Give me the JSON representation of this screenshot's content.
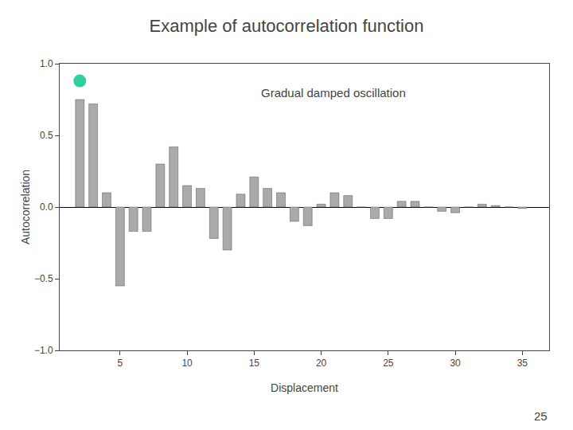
{
  "chart_data": {
    "type": "bar",
    "title": "Example of autocorrelation function",
    "subtitle": "Gradual damped oscillation",
    "xlabel": "Displacement",
    "ylabel": "Autocorrelation",
    "annotations": [
      "25"
    ],
    "xlim": [
      0.5,
      37
    ],
    "ylim": [
      -1.0,
      1.0
    ],
    "xticks": [
      5,
      10,
      15,
      20,
      25,
      30,
      35
    ],
    "yticks": [
      {
        "value": -1.0,
        "label": "−1.0"
      },
      {
        "value": -0.5,
        "label": "−0.5"
      },
      {
        "value": 0.0,
        "label": "0.0"
      },
      0.5,
      {
        "value": 1.0,
        "label": "1.0"
      }
    ],
    "grid": false,
    "series": [
      {
        "type": "bar",
        "color": "#aaaaaa",
        "x": [
          2,
          3,
          4,
          5,
          6,
          7,
          8,
          9,
          10,
          11,
          12,
          13,
          14,
          15,
          16,
          17,
          18,
          19,
          20,
          21,
          22,
          23,
          24,
          25,
          26,
          27,
          28,
          29,
          30,
          31,
          32,
          33,
          34,
          35
        ],
        "values": [
          0.75,
          0.72,
          0.1,
          -0.55,
          -0.17,
          -0.17,
          0.3,
          0.42,
          0.15,
          0.13,
          -0.22,
          -0.3,
          0.09,
          0.21,
          0.13,
          0.1,
          -0.1,
          -0.13,
          0.02,
          0.1,
          0.08,
          0.0,
          -0.08,
          -0.08,
          0.04,
          0.04,
          0.0,
          -0.03,
          -0.04,
          0.0,
          0.02,
          0.01,
          0.0,
          -0.01
        ]
      },
      {
        "type": "scatter",
        "color": "#2ecfa0",
        "marker": "circle",
        "x": [
          2.0
        ],
        "values": [
          0.88
        ]
      }
    ]
  }
}
